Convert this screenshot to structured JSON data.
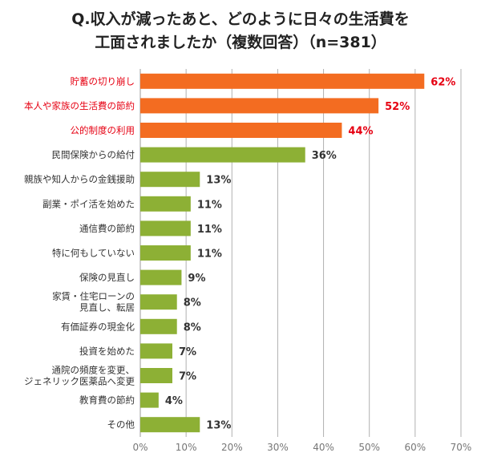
{
  "chart_data": {
    "type": "bar",
    "orientation": "horizontal",
    "title": [
      "Q.収入が減ったあと、どのように日々の生活費を",
      "工面されましたか（複数回答）（n=381）"
    ],
    "categories": [
      "貯蓄の切り崩し",
      "本人や家族の生活費の節約",
      "公的制度の利用",
      "民間保険からの給付",
      "親族や知人からの金銭援助",
      "副業・ポイ活を始めた",
      "通信費の節約",
      "特に何もしていない",
      "保険の見直し",
      "家賃・住宅ローンの\n見直し、転居",
      "有価証券の現金化",
      "投資を始めた",
      "通院の頻度を変更、\nジェネリック医薬品へ変更",
      "教育費の節約",
      "その他"
    ],
    "values": [
      62,
      52,
      44,
      36,
      13,
      11,
      11,
      11,
      9,
      8,
      8,
      7,
      7,
      4,
      13
    ],
    "highlighted": [
      true,
      true,
      true,
      false,
      false,
      false,
      false,
      false,
      false,
      false,
      false,
      false,
      false,
      false,
      false
    ],
    "value_suffix": "%",
    "xlim": [
      0,
      70
    ],
    "xticks": [
      "0%",
      "10%",
      "20%",
      "30%",
      "40%",
      "50%",
      "60%",
      "70%"
    ],
    "grid": true,
    "colors": {
      "highlight_bar": "#f36c21",
      "bar": "#8db035",
      "highlight_text": "#e60012",
      "text": "#333333",
      "axis_text": "#777777",
      "grid": "#b0b0b0"
    }
  }
}
